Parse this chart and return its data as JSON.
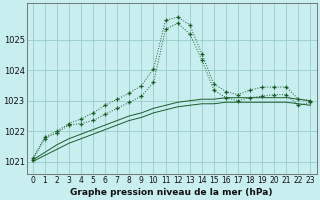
{
  "xlabel": "Graphe pression niveau de la mer (hPa)",
  "background_color": "#c8eef0",
  "grid_color": "#99cccc",
  "line_color": "#1a5c2a",
  "x_ticks": [
    0,
    1,
    2,
    3,
    4,
    5,
    6,
    7,
    8,
    9,
    10,
    11,
    12,
    13,
    14,
    15,
    16,
    17,
    18,
    19,
    20,
    21,
    22,
    23
  ],
  "ylim": [
    1020.6,
    1026.2
  ],
  "y_ticks": [
    1021,
    1022,
    1023,
    1024,
    1025
  ],
  "series_line1": [
    1021.1,
    1021.8,
    1022.0,
    1022.25,
    1022.4,
    1022.6,
    1022.85,
    1023.05,
    1023.25,
    1023.5,
    1024.05,
    1025.65,
    1025.75,
    1025.5,
    1024.55,
    1023.55,
    1023.3,
    1023.2,
    1023.35,
    1023.45,
    1023.45,
    1023.45,
    1023.05,
    1023.0
  ],
  "series_line2": [
    1021.05,
    1021.75,
    1021.95,
    1022.2,
    1022.25,
    1022.35,
    1022.55,
    1022.75,
    1022.95,
    1023.15,
    1023.6,
    1025.35,
    1025.55,
    1025.2,
    1024.35,
    1023.35,
    1023.1,
    1023.0,
    1023.1,
    1023.15,
    1023.2,
    1023.2,
    1022.85,
    1022.95
  ],
  "series_trend1": [
    1021.05,
    1021.3,
    1021.55,
    1021.75,
    1021.9,
    1022.05,
    1022.2,
    1022.35,
    1022.5,
    1022.6,
    1022.75,
    1022.85,
    1022.95,
    1023.0,
    1023.05,
    1023.05,
    1023.1,
    1023.1,
    1023.1,
    1023.1,
    1023.1,
    1023.1,
    1023.05,
    1023.0
  ],
  "series_trend2": [
    1021.0,
    1021.2,
    1021.4,
    1021.6,
    1021.75,
    1021.9,
    1022.05,
    1022.2,
    1022.35,
    1022.45,
    1022.6,
    1022.7,
    1022.8,
    1022.85,
    1022.9,
    1022.9,
    1022.95,
    1022.95,
    1022.95,
    1022.95,
    1022.95,
    1022.95,
    1022.9,
    1022.85
  ],
  "xlabel_fontsize": 6.5,
  "tick_fontsize": 5.5,
  "ytick_fontsize": 6.0
}
